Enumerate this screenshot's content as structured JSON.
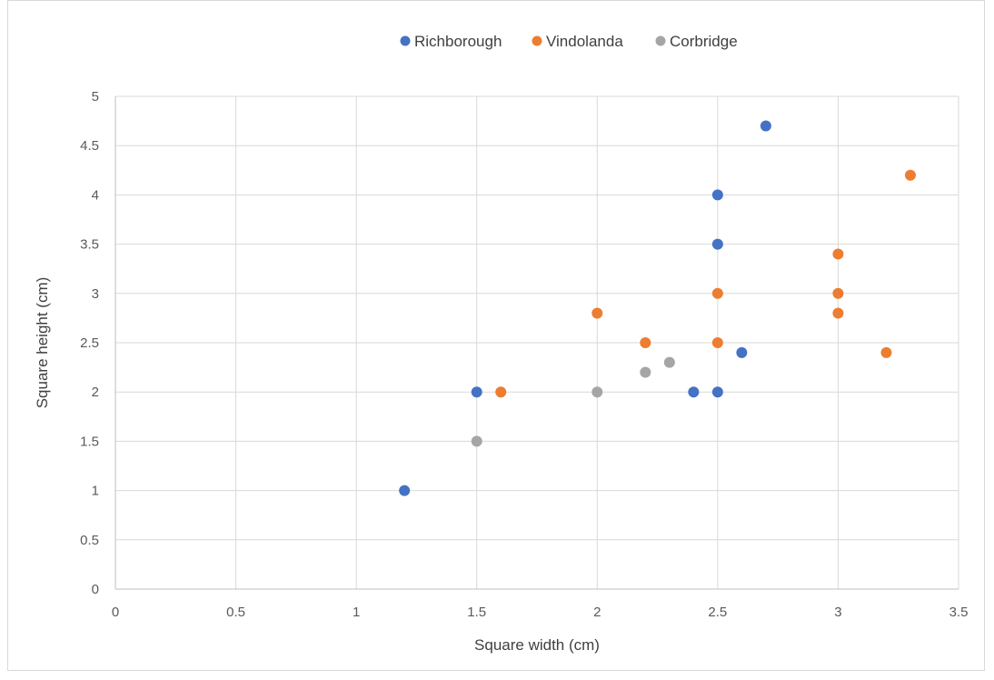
{
  "chart_data": {
    "type": "scatter",
    "xlabel": "Square width (cm)",
    "ylabel": "Square height (cm)",
    "xlim": [
      0,
      3.5
    ],
    "ylim": [
      0,
      5
    ],
    "x_ticks": [
      "0",
      "0.5",
      "1",
      "1.5",
      "2",
      "2.5",
      "3",
      "3.5"
    ],
    "y_ticks": [
      "0",
      "0.5",
      "1",
      "1.5",
      "2",
      "2.5",
      "3",
      "3.5",
      "4",
      "4.5",
      "5"
    ],
    "grid": true,
    "legend_position": "top",
    "series": [
      {
        "name": "Richborough",
        "color": "#4472C4",
        "points": [
          [
            1.2,
            1.0
          ],
          [
            1.5,
            2.0
          ],
          [
            2.4,
            2.0
          ],
          [
            2.5,
            2.0
          ],
          [
            2.6,
            2.4
          ],
          [
            2.5,
            3.5
          ],
          [
            2.5,
            4.0
          ],
          [
            2.7,
            4.7
          ]
        ]
      },
      {
        "name": "Vindolanda",
        "color": "#ED7D31",
        "points": [
          [
            1.6,
            2.0
          ],
          [
            2.0,
            2.8
          ],
          [
            2.2,
            2.5
          ],
          [
            2.5,
            2.5
          ],
          [
            2.5,
            3.0
          ],
          [
            3.0,
            2.8
          ],
          [
            3.0,
            3.0
          ],
          [
            3.0,
            3.4
          ],
          [
            3.2,
            2.4
          ],
          [
            3.3,
            4.2
          ]
        ]
      },
      {
        "name": "Corbridge",
        "color": "#A5A5A5",
        "points": [
          [
            1.5,
            1.5
          ],
          [
            2.0,
            2.0
          ],
          [
            2.2,
            2.2
          ],
          [
            2.3,
            2.3
          ]
        ]
      }
    ]
  }
}
